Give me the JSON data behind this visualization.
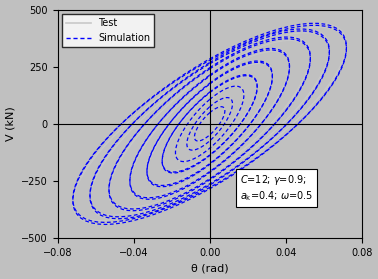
{
  "xlabel": "θ (rad)",
  "ylabel": "V (kN)",
  "xlim": [
    -0.08,
    0.08
  ],
  "ylim": [
    -500,
    500
  ],
  "xticks": [
    -0.08,
    -0.04,
    0,
    0.04,
    0.08
  ],
  "yticks": [
    -500,
    -250,
    0,
    250,
    500
  ],
  "bg_color": "#c0c0c0",
  "plot_bg_color": "#c0c0c0",
  "test_color": "#c8c8c8",
  "sim_color": "#0000ff",
  "legend_test": "Test",
  "legend_sim": "Simulation",
  "amp_levels": [
    0.008,
    0.012,
    0.018,
    0.025,
    0.033,
    0.042,
    0.053,
    0.063,
    0.072
  ],
  "v_maxes": [
    75,
    115,
    165,
    215,
    275,
    330,
    380,
    415,
    440
  ],
  "n_cyc": [
    1,
    1,
    1,
    2,
    2,
    2,
    2,
    2,
    2
  ]
}
